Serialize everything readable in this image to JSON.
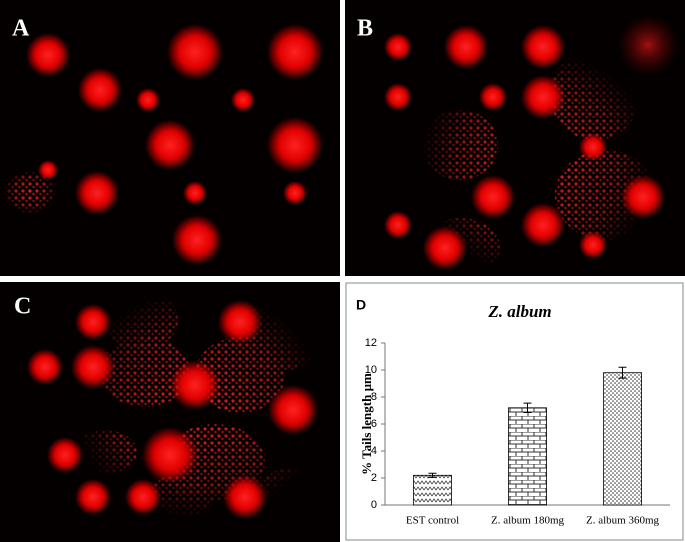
{
  "panels": {
    "a": "A",
    "b": "B",
    "c": "C"
  },
  "chart_data": {
    "type": "bar",
    "label": "D",
    "title": "Z. album",
    "ylabel": "% Tails length µm",
    "categories": [
      "EST control",
      "Z. album 180mg",
      "Z. album 360mg"
    ],
    "values": [
      2.2,
      7.2,
      9.8
    ],
    "errors": [
      0.15,
      0.35,
      0.4
    ],
    "patterns": [
      "zigzag",
      "brick",
      "dots"
    ],
    "color": "#000000",
    "ylim": [
      0,
      12
    ],
    "yticks": [
      0,
      2,
      4,
      6,
      8,
      10,
      12
    ],
    "grid": false
  }
}
